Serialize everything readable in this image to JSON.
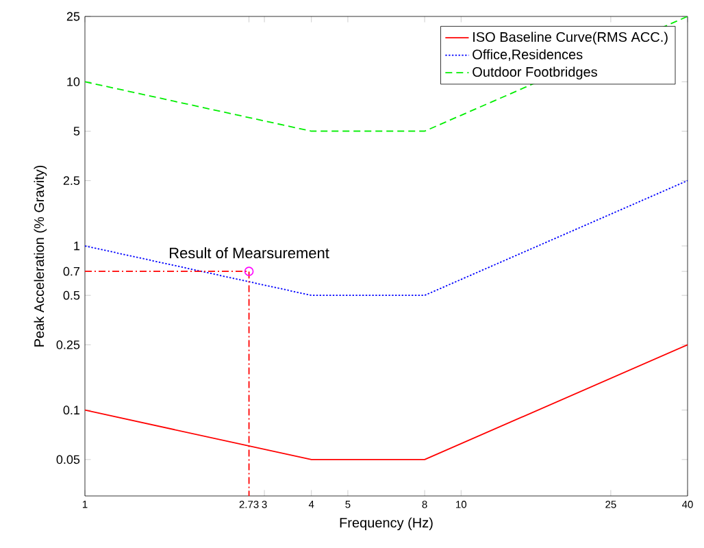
{
  "chart_data": {
    "type": "line",
    "xlabel": "Frequency (Hz)",
    "ylabel": "Peak Acceleration (% Gravity)",
    "log": "xy",
    "xlim": [
      1,
      40
    ],
    "ylim": [
      0.03,
      25
    ],
    "xticks": [
      1,
      2.73,
      3,
      4,
      5,
      8,
      10,
      25,
      40
    ],
    "yticks": [
      0.05,
      0.1,
      0.25,
      0.5,
      0.7,
      1,
      2.5,
      5,
      10,
      25
    ],
    "legend": "top right",
    "grid": false,
    "series": [
      {
        "name": "ISO Baseline Curve(RMS ACC.)",
        "color": "#ff0000",
        "line_style": "solid",
        "x": [
          1,
          4,
          8,
          40
        ],
        "values": [
          0.1,
          0.05,
          0.05,
          0.25
        ]
      },
      {
        "name": "Office,Residences",
        "color": "#0000ff",
        "line_style": "dotted",
        "x": [
          1,
          4,
          8,
          40
        ],
        "values": [
          1,
          0.5,
          0.5,
          2.5
        ]
      },
      {
        "name": "Outdoor Footbridges",
        "color": "#00ee00",
        "line_style": "dashed",
        "x": [
          1,
          4,
          8,
          40
        ],
        "values": [
          10,
          5,
          5,
          25
        ]
      },
      {
        "type": "line",
        "color": "#ff0000",
        "line_style": "dashdot",
        "x": [
          1,
          2.73,
          2.73
        ],
        "values": [
          0.7,
          0.7,
          0.03
        ]
      },
      {
        "type": "scatter",
        "color": "#ff00ff",
        "marker": "circle",
        "x": [
          2.73
        ],
        "values": [
          0.7
        ]
      }
    ],
    "annotations": [
      {
        "text": "Result of Mearsurement",
        "x": 2.73,
        "y": 0.7
      }
    ]
  }
}
